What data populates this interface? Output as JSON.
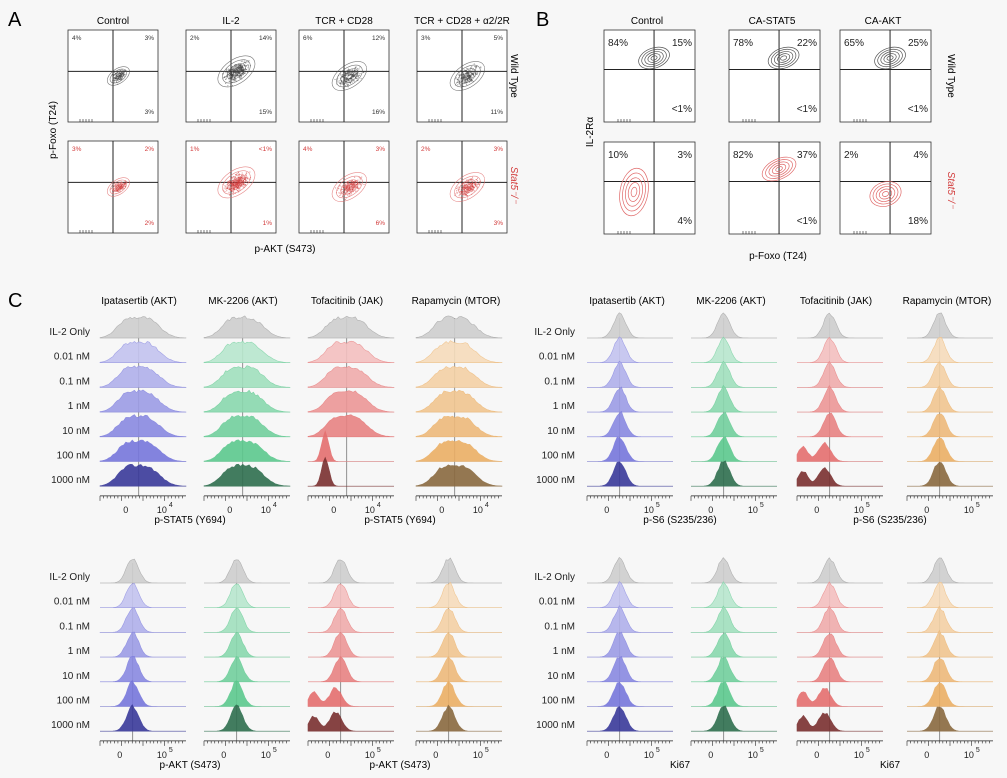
{
  "figure": {
    "panel_labels": [
      "A",
      "B",
      "C"
    ],
    "panel_a": {
      "columns": [
        "Control",
        "IL-2",
        "TCR + CD28",
        "TCR + CD28 + α2/2R"
      ],
      "rows": [
        "Wild Type",
        "Stat5⁻/⁻"
      ],
      "x_axis": "p-AKT (S473)",
      "y_axis": "p-Foxo (T24)",
      "quadrants": [
        [
          [
            "4%",
            "3%",
            "3%"
          ],
          [
            "2%",
            "14%",
            "15%"
          ],
          [
            "6%",
            "12%",
            "16%"
          ],
          [
            "3%",
            "5%",
            "11%"
          ]
        ],
        [
          [
            "3%",
            "2%",
            "2%"
          ],
          [
            "1%",
            "<1%",
            "1%"
          ],
          [
            "4%",
            "3%",
            "6%"
          ],
          [
            "2%",
            "3%",
            "3%"
          ]
        ]
      ]
    },
    "panel_b": {
      "columns": [
        "Control",
        "CA-STAT5",
        "CA-AKT"
      ],
      "rows": [
        "Wild Type",
        "Stat5⁻/⁻"
      ],
      "x_axis": "p-Foxo (T24)",
      "y_axis": "IL-2Rα",
      "quadrants": [
        [
          [
            "84%",
            "15%",
            "<1%"
          ],
          [
            "78%",
            "22%",
            "<1%"
          ],
          [
            "65%",
            "25%",
            "<1%"
          ]
        ],
        [
          [
            "10%",
            "3%",
            "4%"
          ],
          [
            "82%",
            "37%",
            "<1%"
          ],
          [
            "2%",
            "4%",
            "18%"
          ]
        ]
      ]
    },
    "panel_c": {
      "drugs": [
        "Ipatasertib (AKT)",
        "MK-2206 (AKT)",
        "Tofacitinib (JAK)",
        "Rapamycin (MTOR)"
      ],
      "conditions": [
        "IL-2 Only",
        "0.01 nM",
        "0.1 nM",
        "1 nM",
        "10 nM",
        "100 nM",
        "1000 nM"
      ],
      "blocks": [
        {
          "xlabels": [
            "p-STAT5 (Y694)",
            "p-STAT5 (Y694)"
          ],
          "tick0": "0",
          "tickmax": "10",
          "exp": "4"
        },
        {
          "xlabels": [
            "p-S6 (S235/236)",
            "p-S6 (S235/236)"
          ],
          "tick0": "0",
          "tickmax": "10",
          "exp": "5"
        },
        {
          "xlabels": [
            "p-AKT (S473)",
            "p-AKT (S473)"
          ],
          "tick0": "0",
          "tickmax": "10",
          "exp": "5"
        },
        {
          "xlabels": [
            "Ki67",
            "Ki67"
          ],
          "tick0": "0",
          "tickmax": "10",
          "exp": "5"
        }
      ]
    }
  },
  "colors": {
    "wildtype_text": "#333333",
    "stat5_text": "#d23a3a",
    "drug_hues": [
      "#5f5fd6",
      "#3fbf7a",
      "#e05555",
      "#e8a14a"
    ],
    "drug_dark": [
      "#3a3a9a",
      "#2f6f4f",
      "#7a3030",
      "#8a6a40"
    ],
    "gray": "#c4c4c4"
  }
}
